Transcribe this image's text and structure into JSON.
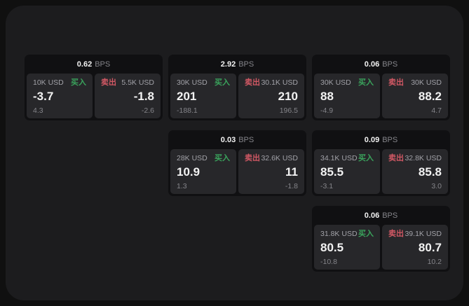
{
  "colors": {
    "page_bg": "#101010",
    "panel_bg": "#1c1c1e",
    "card_bg": "#101012",
    "tile_bg": "#27272a",
    "text_primary": "#f2f2f2",
    "text_secondary": "#a2a2a8",
    "text_muted": "#85858a",
    "buy_green": "#3aa35c",
    "sell_red": "#d15864"
  },
  "labels": {
    "bps_unit": "BPS",
    "buy": "买入",
    "sell": "卖出"
  },
  "cards": [
    {
      "col": 1,
      "row": 1,
      "bps": "0.62",
      "buy": {
        "notional": "10K USD",
        "value": "-3.7",
        "delta": "4.3"
      },
      "sell": {
        "notional": "5.5K USD",
        "value": "-1.8",
        "delta": "-2.6"
      }
    },
    {
      "col": 2,
      "row": 1,
      "bps": "2.92",
      "buy": {
        "notional": "30K USD",
        "value": "201",
        "delta": "-188.1"
      },
      "sell": {
        "notional": "30.1K USD",
        "value": "210",
        "delta": "196.5"
      }
    },
    {
      "col": 3,
      "row": 1,
      "bps": "0.06",
      "buy": {
        "notional": "30K USD",
        "value": "88",
        "delta": "-4.9"
      },
      "sell": {
        "notional": "30K USD",
        "value": "88.2",
        "delta": "4.7"
      }
    },
    {
      "col": 2,
      "row": 2,
      "bps": "0.03",
      "buy": {
        "notional": "28K USD",
        "value": "10.9",
        "delta": "1.3"
      },
      "sell": {
        "notional": "32.6K USD",
        "value": "11",
        "delta": "-1.8"
      }
    },
    {
      "col": 3,
      "row": 2,
      "bps": "0.09",
      "buy": {
        "notional": "34.1K USD",
        "value": "85.5",
        "delta": "-3.1"
      },
      "sell": {
        "notional": "32.8K USD",
        "value": "85.8",
        "delta": "3.0"
      }
    },
    {
      "col": 3,
      "row": 3,
      "bps": "0.06",
      "buy": {
        "notional": "31.8K USD",
        "value": "80.5",
        "delta": "-10.8"
      },
      "sell": {
        "notional": "39.1K USD",
        "value": "80.7",
        "delta": "10.2"
      }
    }
  ]
}
